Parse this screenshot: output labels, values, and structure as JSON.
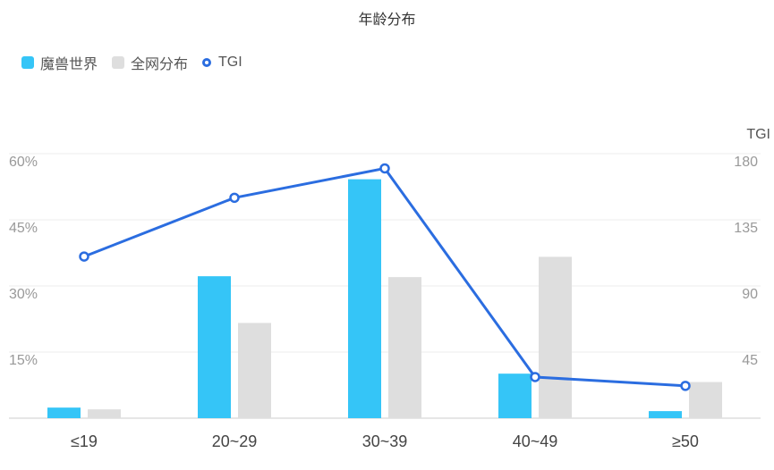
{
  "chart_data": {
    "type": "bar",
    "title": "年龄分布",
    "categories": [
      "≤19",
      "20~29",
      "30~39",
      "40~49",
      "≥50"
    ],
    "series": [
      {
        "name": "魔兽世界",
        "type": "bar",
        "axis": "left",
        "color": "#35c5f7",
        "values": [
          2.4,
          32.2,
          54.2,
          10.1,
          1.6
        ]
      },
      {
        "name": "全网分布",
        "type": "bar",
        "axis": "left",
        "color": "#dedede",
        "values": [
          2.0,
          21.6,
          32.0,
          36.6,
          8.2
        ]
      },
      {
        "name": "TGI",
        "type": "line",
        "axis": "right",
        "color": "#2b6de0",
        "values": [
          110,
          150,
          170,
          28,
          22
        ]
      }
    ],
    "y_left": {
      "ticks": [
        "15%",
        "30%",
        "45%",
        "60%"
      ],
      "tick_values": [
        15,
        30,
        45,
        60
      ],
      "ylim": [
        0,
        60
      ]
    },
    "y_right": {
      "label": "TGI",
      "ticks": [
        "45",
        "90",
        "135",
        "180"
      ],
      "tick_values": [
        45,
        90,
        135,
        180
      ],
      "ylim": [
        0,
        180
      ]
    },
    "grid": true,
    "legend_position": "top-left"
  }
}
